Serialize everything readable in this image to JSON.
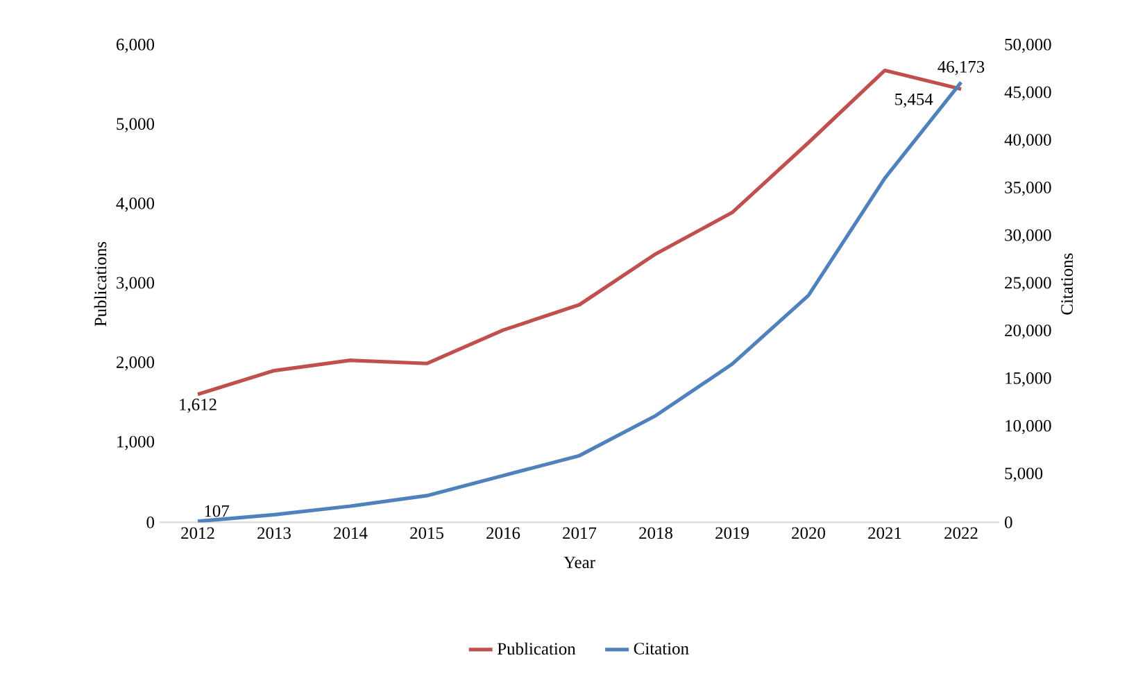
{
  "chart_data": {
    "type": "line",
    "xlabel": "Year",
    "ylabel": "Publications",
    "y2label": "Citations",
    "categories": [
      "2012",
      "2013",
      "2014",
      "2015",
      "2016",
      "2017",
      "2018",
      "2019",
      "2020",
      "2021",
      "2022"
    ],
    "series": [
      {
        "name": "Publication",
        "color": "#c0504d",
        "values": [
          1612,
          1910,
          2040,
          2000,
          2420,
          2740,
          3380,
          3900,
          4780,
          5690,
          5454
        ],
        "value_labels": [
          "1,612",
          null,
          null,
          null,
          null,
          null,
          null,
          null,
          null,
          null,
          "5,454"
        ]
      },
      {
        "name": "Citation",
        "color": "#4f81bd",
        "axis": "y2",
        "values": [
          107,
          800,
          1700,
          2800,
          4900,
          7000,
          11200,
          16600,
          23800,
          36100,
          46173
        ],
        "value_labels": [
          "107",
          null,
          null,
          null,
          null,
          null,
          null,
          null,
          null,
          null,
          "46,173"
        ]
      }
    ],
    "ylim": [
      0,
      6000
    ],
    "yticks": [
      {
        "value": 0,
        "label": "0"
      },
      {
        "value": 1000,
        "label": "1,000"
      },
      {
        "value": 2000,
        "label": "2,000"
      },
      {
        "value": 3000,
        "label": "3,000"
      },
      {
        "value": 4000,
        "label": "4,000"
      },
      {
        "value": 5000,
        "label": "5,000"
      },
      {
        "value": 6000,
        "label": "6,000"
      }
    ],
    "y2lim": [
      0,
      50000
    ],
    "y2ticks": [
      {
        "value": 0,
        "label": "0"
      },
      {
        "value": 5000,
        "label": "5,000"
      },
      {
        "value": 10000,
        "label": "10,000"
      },
      {
        "value": 15000,
        "label": "15,000"
      },
      {
        "value": 20000,
        "label": "20,000"
      },
      {
        "value": 25000,
        "label": "25,000"
      },
      {
        "value": 30000,
        "label": "30,000"
      },
      {
        "value": 35000,
        "label": "35,000"
      },
      {
        "value": 40000,
        "label": "40,000"
      },
      {
        "value": 45000,
        "label": "45,000"
      },
      {
        "value": 50000,
        "label": "50,000"
      }
    ],
    "grid": false,
    "legend": "bottom",
    "marker": "none",
    "line_style": "solid"
  }
}
